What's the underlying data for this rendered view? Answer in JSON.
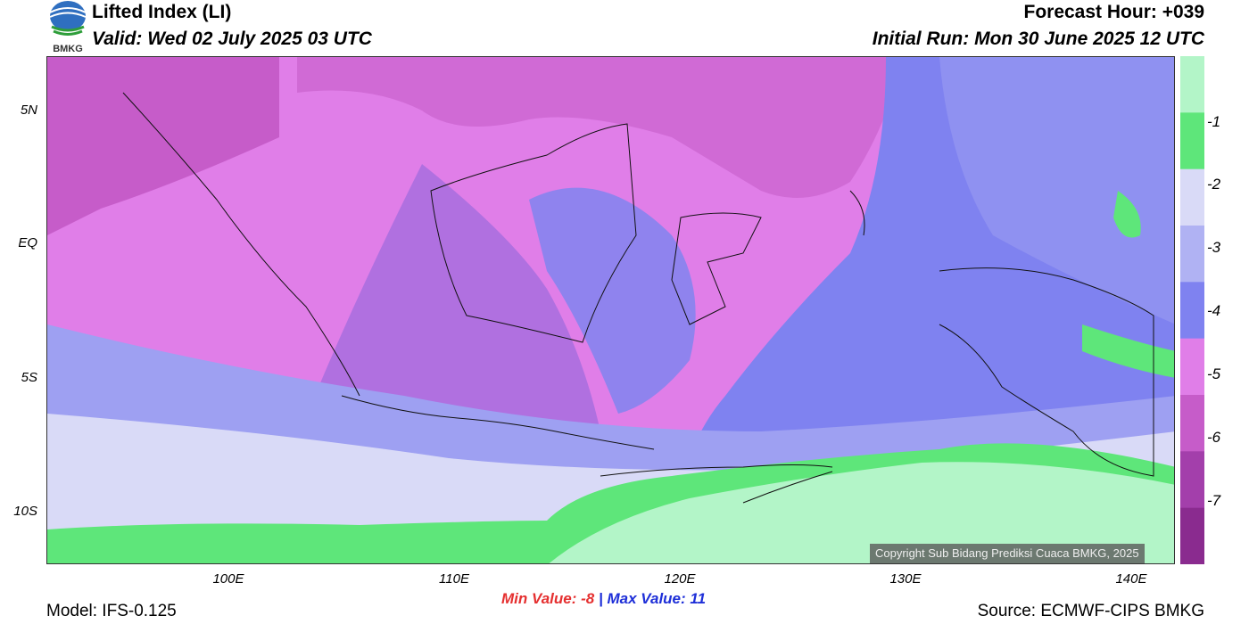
{
  "header": {
    "title": "Lifted Index (LI)",
    "valid": "Valid: Wed 02 July 2025 03 UTC",
    "forecast_hour": "Forecast Hour: +039",
    "initial_run": "Initial Run: Mon 30 June 2025 12 UTC",
    "logo_text": "BMKG"
  },
  "map": {
    "lat_labels": [
      "5N",
      "EQ",
      "5S",
      "10S"
    ],
    "lon_labels": [
      "100E",
      "110E",
      "120E",
      "130E",
      "140E"
    ],
    "copyright": "Copyright Sub Bidang Prediksi Cuaca BMKG, 2025"
  },
  "colorbar": {
    "labels": [
      "-1",
      "-2",
      "-3",
      "-4",
      "-5",
      "-6",
      "-7"
    ],
    "colors": [
      "#b3f5c8",
      "#5ee67a",
      "#d9daf7",
      "#b0b2f3",
      "#7f82f0",
      "#e07ee8",
      "#c65cc9",
      "#a33fab",
      "#8a2b8f"
    ]
  },
  "footer": {
    "min_label": "Min Value:",
    "min_value": "-8",
    "separator": "|",
    "max_label": "Max Value:",
    "max_value": "11",
    "model": "Model: IFS-0.125",
    "source": "Source: ECMWF-CIPS BMKG"
  }
}
